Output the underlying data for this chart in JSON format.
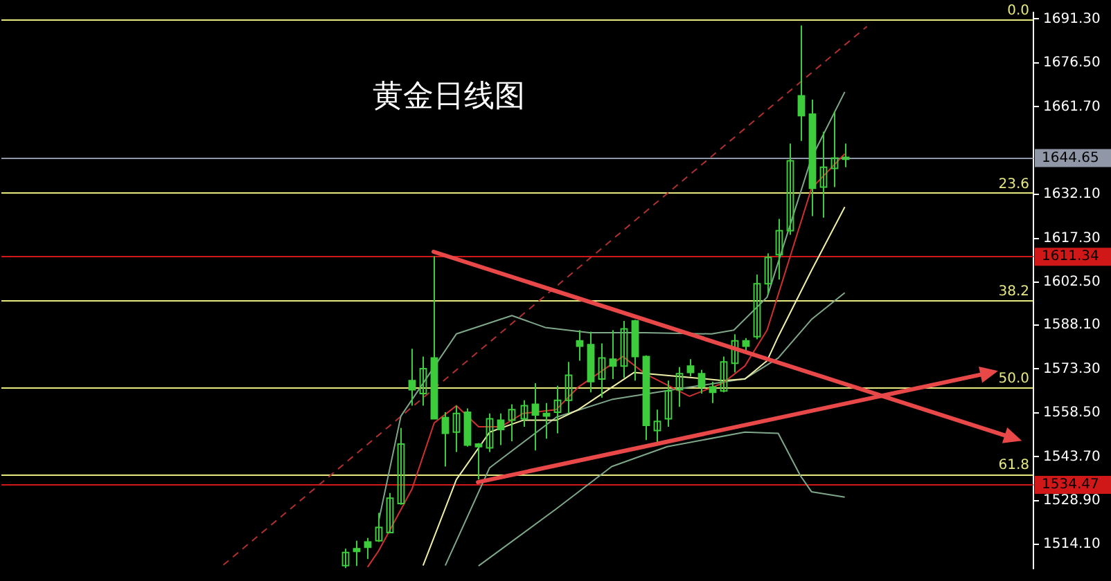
{
  "chart_data": {
    "type": "candlestick",
    "title": "黄金日线图",
    "color": "#3ccc3c",
    "grid": false,
    "legend": false,
    "tick_labels": "y",
    "categories": [
      null,
      null,
      null,
      null,
      null,
      null,
      null,
      null,
      null,
      null,
      null,
      null,
      null,
      null,
      null,
      null,
      null,
      null,
      null,
      null,
      null,
      null,
      null,
      null,
      null,
      null,
      null,
      null,
      null,
      null,
      null,
      null,
      null,
      null,
      null,
      null,
      null,
      null,
      null,
      null,
      null,
      null,
      null,
      null,
      null,
      null,
      null,
      null,
      null,
      null,
      null,
      null,
      null,
      null,
      null,
      null,
      null,
      null,
      null,
      null,
      null,
      null,
      null,
      null,
      null,
      null,
      null,
      null,
      null,
      null,
      null,
      null,
      null,
      null,
      null,
      null,
      null,
      null,
      null,
      null,
      null,
      null,
      null,
      null,
      null,
      null,
      null,
      null,
      null,
      null,
      null,
      null,
      null,
      null
    ],
    "ohlc": [
      null,
      null,
      null,
      null,
      null,
      null,
      null,
      null,
      null,
      null,
      null,
      null,
      null,
      null,
      null,
      null,
      null,
      null,
      null,
      null,
      null,
      null,
      null,
      null,
      null,
      null,
      null,
      null,
      null,
      null,
      null,
      [
        1507,
        1512.7,
        1506.2,
        1511.4
      ],
      [
        1512.7,
        1515.4,
        1506.9,
        1511.8
      ],
      [
        1515.0,
        1516.3,
        1509.2,
        1513.2
      ],
      [
        1515.4,
        1524.8,
        1515.0,
        1519.9
      ],
      [
        1518.1,
        1531.5,
        1518.0,
        1529.7
      ],
      [
        1527.9,
        1553.4,
        1527.5,
        1548.0
      ],
      [
        1569.4,
        1580.1,
        1560.9,
        1566.3
      ],
      [
        1565.0,
        1577.5,
        1560.9,
        1573.4
      ],
      [
        1577.0,
        1611.3,
        1556.5,
        1556.5
      ],
      [
        1556.9,
        1558.7,
        1540.4,
        1551.6
      ],
      [
        1552.0,
        1560.9,
        1545.3,
        1558.3
      ],
      [
        1558.7,
        1560.0,
        1547.1,
        1547.6
      ],
      [
        1548.0,
        1548.3,
        1536.0,
        1547.1
      ],
      [
        1546.7,
        1558.3,
        1545.3,
        1556.5
      ],
      [
        1556.0,
        1558.3,
        1547.6,
        1552.9
      ],
      [
        1556.0,
        1561.4,
        1548.9,
        1559.6
      ],
      [
        1556.5,
        1562.7,
        1553.8,
        1560.9
      ],
      [
        1561.4,
        1568.5,
        1545.8,
        1557.8
      ],
      [
        1558.3,
        1561.8,
        1549.8,
        1557.4
      ],
      [
        1558.7,
        1567.6,
        1551.6,
        1562.7
      ],
      [
        1562.7,
        1575.7,
        1558.3,
        1571.2
      ],
      [
        1582.8,
        1586.4,
        1576.1,
        1581.0
      ],
      [
        1581.5,
        1585.9,
        1565.4,
        1569.0
      ],
      [
        1569.9,
        1581.9,
        1563.6,
        1577.0
      ],
      [
        1576.6,
        1586.4,
        1569.9,
        1574.3
      ],
      [
        1574.3,
        1589.5,
        1570.3,
        1586.8
      ],
      [
        1589.5,
        1589.9,
        1569.4,
        1577.5
      ],
      [
        1577.5,
        1577.9,
        1549.3,
        1554.3
      ],
      [
        1552.5,
        1559.6,
        1548.0,
        1555.6
      ],
      [
        1556.5,
        1569.4,
        1553.8,
        1565.9
      ],
      [
        1566.3,
        1573.9,
        1560.5,
        1571.7
      ],
      [
        1574.3,
        1576.6,
        1570.8,
        1572.1
      ],
      [
        1571.7,
        1573.0,
        1565.0,
        1567.2
      ],
      [
        1567.2,
        1569.0,
        1561.8,
        1565.4
      ],
      [
        1565.9,
        1577.5,
        1565.4,
        1575.7
      ],
      [
        1575.2,
        1585.0,
        1572.1,
        1582.8
      ],
      [
        1582.8,
        1583.7,
        1578.8,
        1581.0
      ],
      [
        1584.2,
        1605.1,
        1583.3,
        1602.0
      ],
      [
        1602.0,
        1612.3,
        1598.4,
        1610.9
      ],
      [
        1611.8,
        1623.9,
        1603.4,
        1619.9
      ],
      [
        1619.9,
        1649.3,
        1618.5,
        1643.5
      ],
      [
        1665.4,
        1689.1,
        1650.2,
        1658.7
      ],
      [
        1659.2,
        1664.1,
        1624.8,
        1634.2
      ],
      [
        1634.6,
        1653.3,
        1624.3,
        1641.3
      ],
      [
        1640.9,
        1660.1,
        1634.6,
        1644.4
      ],
      [
        1644.0,
        1649.3,
        1641.3,
        1644.65
      ],
      null,
      null,
      null,
      null,
      null,
      null,
      null,
      null,
      null,
      null,
      null,
      null,
      null,
      null,
      null,
      null,
      null
    ],
    "series": [
      {
        "type": "line",
        "color": "#d03030",
        "values": [
          null,
          null,
          null,
          null,
          null,
          null,
          null,
          null,
          null,
          null,
          null,
          null,
          null,
          null,
          null,
          null,
          null,
          null,
          null,
          null,
          null,
          null,
          null,
          null,
          null,
          null,
          null,
          null,
          null,
          null,
          null,
          null,
          null,
          1506.5,
          1512,
          null,
          null,
          1532.8,
          null,
          1555.1,
          null,
          1560.9,
          null,
          1553.8,
          null,
          1553.8,
          null,
          1558.3,
          null,
          null,
          1559.6,
          null,
          1567.2,
          null,
          null,
          null,
          1577.5,
          null,
          1571.7,
          null,
          null,
          null,
          1564.1,
          null,
          null,
          1568.5,
          null,
          1574.3,
          null,
          1586.4,
          null,
          null,
          null,
          1634.2,
          null,
          null,
          1645.8,
          null,
          null,
          null,
          null,
          null,
          null,
          null,
          null,
          null,
          null,
          null,
          null,
          null,
          null,
          null,
          null,
          null
        ]
      },
      {
        "type": "line",
        "color": "#f0f0a8",
        "values": [
          null,
          null,
          null,
          null,
          null,
          null,
          null,
          null,
          null,
          null,
          null,
          null,
          null,
          null,
          null,
          null,
          null,
          null,
          null,
          null,
          null,
          null,
          null,
          null,
          null,
          null,
          null,
          null,
          null,
          null,
          null,
          null,
          null,
          null,
          null,
          null,
          null,
          null,
          1507,
          null,
          null,
          1536,
          null,
          null,
          1552,
          null,
          null,
          1556,
          null,
          null,
          1556,
          null,
          1559.6,
          null,
          null,
          null,
          null,
          1572.1,
          null,
          null,
          null,
          1570.8,
          null,
          null,
          null,
          1569.4,
          null,
          1569.9,
          null,
          1576.1,
          1584.2,
          null,
          null,
          1606.5,
          null,
          null,
          1627.9,
          null,
          null,
          null,
          null,
          null,
          null,
          null,
          null,
          null,
          null,
          null,
          null,
          null,
          null,
          null,
          null,
          null
        ]
      },
      {
        "type": "line",
        "color": "#7fa88a",
        "values": [
          null,
          null,
          null,
          null,
          null,
          null,
          null,
          null,
          null,
          null,
          null,
          null,
          null,
          null,
          null,
          null,
          null,
          null,
          null,
          null,
          null,
          null,
          null,
          null,
          null,
          null,
          null,
          null,
          null,
          null,
          null,
          null,
          null,
          null,
          1522,
          null,
          1557.4,
          null,
          null,
          null,
          null,
          1585.1,
          null,
          null,
          null,
          null,
          1591.3,
          null,
          null,
          1587.3,
          null,
          null,
          null,
          1585.5,
          null,
          null,
          null,
          null,
          1585.5,
          null,
          null,
          null,
          null,
          null,
          1585.1,
          null,
          1586.4,
          null,
          null,
          1597.5,
          null,
          null,
          null,
          1644.4,
          null,
          null,
          1666.7,
          null,
          null,
          null,
          null,
          null,
          null,
          null,
          null,
          null,
          null,
          null,
          null,
          null,
          null,
          null,
          null,
          null
        ]
      },
      {
        "type": "line",
        "color": "#7fa88a",
        "values": [
          null,
          null,
          null,
          null,
          null,
          null,
          null,
          null,
          null,
          null,
          null,
          null,
          null,
          null,
          null,
          null,
          null,
          null,
          null,
          null,
          null,
          null,
          null,
          null,
          null,
          null,
          null,
          null,
          null,
          null,
          null,
          null,
          null,
          null,
          null,
          null,
          null,
          null,
          null,
          null,
          1507,
          null,
          null,
          null,
          1540,
          null,
          null,
          null,
          null,
          null,
          1557,
          null,
          null,
          null,
          null,
          1563,
          null,
          null,
          null,
          null,
          1566,
          null,
          null,
          null,
          null,
          null,
          null,
          1570,
          null,
          null,
          1577,
          null,
          null,
          1590,
          null,
          null,
          1599,
          null,
          null,
          null,
          null,
          null,
          null,
          null,
          null,
          null,
          null,
          null,
          null,
          null,
          null,
          null,
          null,
          null
        ]
      },
      {
        "type": "line",
        "color": "#7fa88a",
        "values": [
          null,
          null,
          null,
          null,
          null,
          null,
          null,
          null,
          null,
          null,
          null,
          null,
          null,
          null,
          null,
          null,
          null,
          null,
          null,
          null,
          null,
          null,
          null,
          null,
          null,
          null,
          null,
          null,
          null,
          null,
          null,
          null,
          null,
          null,
          null,
          null,
          null,
          null,
          null,
          null,
          null,
          null,
          null,
          1506.9,
          null,
          null,
          null,
          null,
          null,
          null,
          1526.1,
          null,
          null,
          null,
          null,
          1540.4,
          null,
          null,
          null,
          null,
          1547.1,
          null,
          null,
          null,
          null,
          null,
          null,
          1552,
          null,
          null,
          1551.6,
          null,
          1537.3,
          1531.9,
          null,
          null,
          1530.1,
          null,
          null,
          null,
          null,
          null,
          null,
          null,
          null,
          null,
          null,
          null,
          null,
          null,
          null,
          null,
          null,
          null
        ]
      },
      {
        "type": "line",
        "color": "#b03030",
        "line_style": "dashed",
        "values": [
          null,
          null,
          null,
          null,
          null,
          null,
          null,
          null,
          null,
          null,
          null,
          null,
          null,
          null,
          null,
          null,
          null,
          null,
          null,
          null,
          1507.2,
          null,
          null,
          null,
          null,
          null,
          null,
          null,
          null,
          null,
          null,
          null,
          null,
          null,
          null,
          null,
          null,
          null,
          null,
          null,
          null,
          null,
          null,
          null,
          null,
          null,
          null,
          null,
          null,
          null,
          null,
          null,
          null,
          null,
          null,
          null,
          null,
          null,
          null,
          null,
          null,
          null,
          null,
          null,
          null,
          null,
          null,
          null,
          null,
          null,
          null,
          null,
          null,
          null,
          null,
          null,
          null,
          null,
          1688.8,
          null,
          null,
          null,
          null,
          null,
          null,
          null,
          null,
          null,
          null,
          null,
          null,
          null,
          null,
          null
        ]
      }
    ],
    "annotations": [
      {
        "text": "0.0",
        "y": 1691.3
      },
      {
        "text": "23.6",
        "y": 1632.7
      },
      {
        "text": "38.2",
        "y": 1596.5
      },
      {
        "text": "50.0",
        "y": 1567.2
      },
      {
        "text": "61.8",
        "y": 1537.9
      }
    ],
    "ylim": [
      1506,
      1693.5
    ],
    "yticks": [
      {
        "value": 1691.3,
        "label": "1691.30"
      },
      {
        "value": 1676.5,
        "label": "1676.50"
      },
      {
        "value": 1661.7,
        "label": "1661.70"
      },
      {
        "value": 1632.1,
        "label": "1632.10"
      },
      {
        "value": 1617.3,
        "label": "1617.30"
      },
      {
        "value": 1602.5,
        "label": "1602.50"
      },
      {
        "value": 1588.1,
        "label": "1588.10"
      },
      {
        "value": 1573.3,
        "label": "1573.30"
      },
      {
        "value": 1558.5,
        "label": "1558.50"
      },
      {
        "value": 1543.7,
        "label": "1543.70"
      },
      {
        "value": 1528.9,
        "label": "1528.90"
      },
      {
        "value": 1514.1,
        "label": "1514.10"
      }
    ],
    "ref_lines": [
      {
        "axis": "y",
        "value": 1691.3,
        "color": "#e8e880"
      },
      {
        "axis": "y",
        "value": 1632.7,
        "color": "#e8e880"
      },
      {
        "axis": "y",
        "value": 1596.5,
        "color": "#e8e880"
      },
      {
        "axis": "y",
        "value": 1567.2,
        "color": "#e8e880"
      },
      {
        "axis": "y",
        "value": 1537.9,
        "color": "#e8e880"
      },
      {
        "axis": "y",
        "value": 1644.65,
        "label": "1644.65",
        "color": "#9098a8"
      },
      {
        "axis": "y",
        "value": 1611.34,
        "label": "1611.34",
        "color": "#d01818"
      },
      {
        "axis": "y",
        "value": 1534.47,
        "label": "1534.47",
        "color": "#d01818"
      }
    ]
  }
}
